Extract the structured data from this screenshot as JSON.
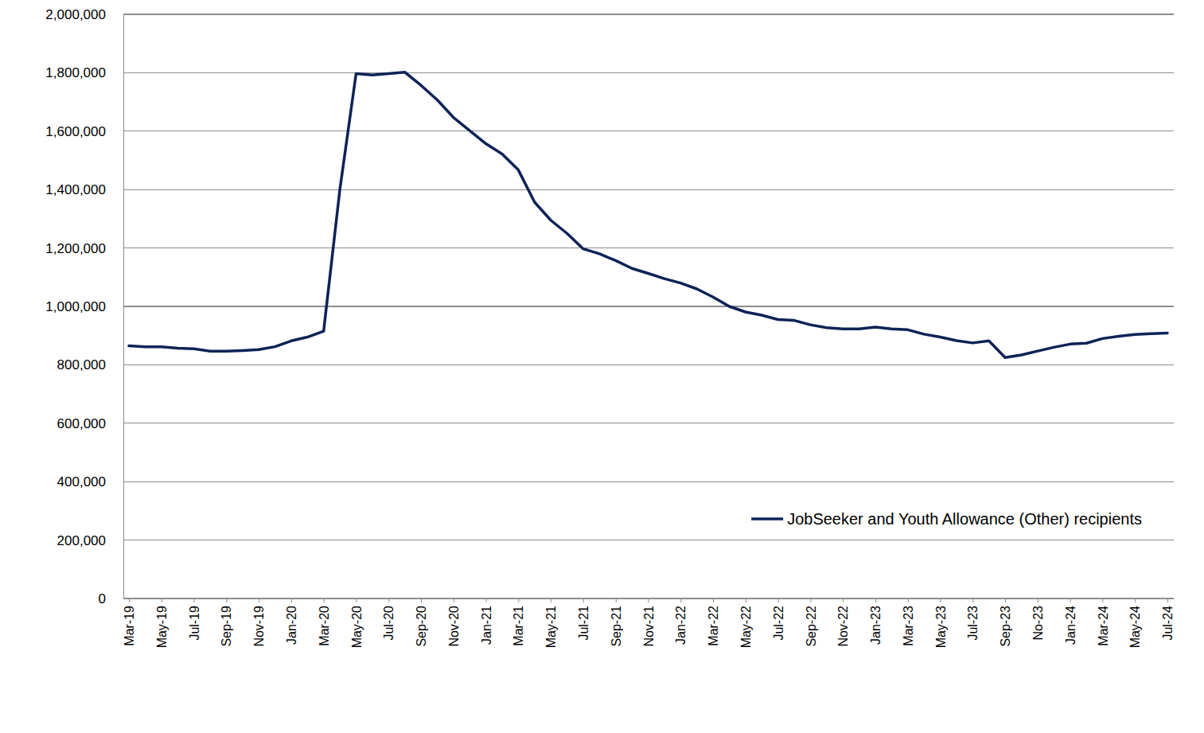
{
  "chart_data": {
    "type": "line",
    "categories": [
      "Mar-19",
      null,
      "May-19",
      null,
      "Jul-19",
      null,
      "Sep-19",
      null,
      "Nov-19",
      null,
      "Jan-20",
      null,
      "Mar-20",
      null,
      "May-20",
      null,
      "Jul-20",
      null,
      "Sep-20",
      null,
      "Nov-20",
      null,
      "Jan-21",
      null,
      "Mar-21",
      null,
      "May-21",
      null,
      "Jul-21",
      null,
      "Sep-21",
      null,
      "Nov-21",
      null,
      "Jan-22",
      null,
      "Mar-22",
      null,
      "May-22",
      null,
      "Jul-22",
      null,
      "Sep-22",
      null,
      "Nov-22",
      null,
      "Jan-23",
      null,
      "Mar-23",
      null,
      "May-23",
      null,
      "Jul-23",
      null,
      "Sep-23",
      null,
      "No-23",
      null,
      "Jan-24",
      null,
      "Mar-24",
      null,
      "May-24",
      null,
      "Jul-24"
    ],
    "series": [
      {
        "name": "JobSeeker and Youth Allowance (Other) recipients",
        "color": "#0d2357",
        "values": [
          865000,
          862000,
          862000,
          857000,
          855000,
          847000,
          847000,
          849000,
          852000,
          862000,
          882000,
          895000,
          915000,
          1400000,
          1797000,
          1792000,
          1797000,
          1802000,
          1757000,
          1707000,
          1647000,
          1602000,
          1557000,
          1522000,
          1467000,
          1357000,
          1295000,
          1250000,
          1197000,
          1180000,
          1157000,
          1130000,
          1113000,
          1095000,
          1080000,
          1060000,
          1032000,
          1000000,
          981000,
          970000,
          955000,
          952000,
          937000,
          927000,
          923000,
          923000,
          929000,
          923000,
          920000,
          905000,
          895000,
          883000,
          875000,
          882000,
          825000,
          834000,
          847000,
          860000,
          871000,
          874000,
          890000,
          898000,
          904000,
          907000,
          909000
        ]
      }
    ],
    "ylim": [
      0,
      2000000
    ],
    "yticks": [
      0,
      {
        "value": 200000,
        "label": "200,000"
      },
      {
        "value": 400000,
        "label": "400,000"
      },
      {
        "value": 600000,
        "label": "600,000"
      },
      {
        "value": 800000,
        "label": "800,000"
      },
      {
        "value": 1000000,
        "label": "1,000,000"
      },
      {
        "value": 1200000,
        "label": "1,200,000"
      },
      {
        "value": 1400000,
        "label": "1,400,000"
      },
      {
        "value": 1600000,
        "label": "1,600,000"
      },
      {
        "value": 1800000,
        "label": "1,800,000"
      },
      {
        "value": 2000000,
        "label": "2,000,000"
      }
    ],
    "grid": true,
    "legend": "lower right"
  }
}
